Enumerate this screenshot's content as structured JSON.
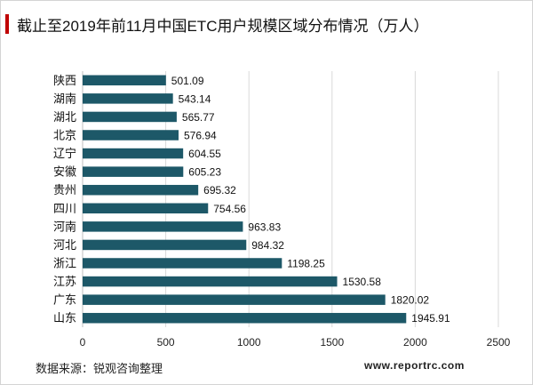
{
  "title": "截止至2019年前11月中国ETC用户规模区域分布情况（万人）",
  "footer": {
    "source": "数据来源：锐观咨询整理",
    "website": "www.reportrc.com"
  },
  "colors": {
    "bar": "#1d5868",
    "accent": "#c00000",
    "grid": "#d9d9d9"
  },
  "chart_data": {
    "type": "bar",
    "orientation": "horizontal",
    "categories": [
      "陕西",
      "湖南",
      "湖北",
      "北京",
      "辽宁",
      "安徽",
      "贵州",
      "四川",
      "河南",
      "河北",
      "浙江",
      "江苏",
      "广东",
      "山东"
    ],
    "values": [
      501.09,
      543.14,
      565.77,
      576.94,
      604.55,
      605.23,
      695.32,
      754.56,
      963.83,
      984.32,
      1198.25,
      1530.58,
      1820.02,
      1945.91
    ],
    "value_labels": [
      "501.09",
      "543.14",
      "565.77",
      "576.94",
      "604.55",
      "605.23",
      "695.32",
      "754.56",
      "963.83",
      "984.32",
      "1198.25",
      "1530.58",
      "1820.02",
      "1945.91"
    ],
    "xlim": [
      0,
      2500
    ],
    "xticks": [
      "0",
      "500",
      "1000",
      "1500",
      "2000",
      "2500"
    ],
    "xtick_values": [
      0,
      500,
      1000,
      1500,
      2000,
      2500
    ],
    "grid": true,
    "legend": "none"
  }
}
